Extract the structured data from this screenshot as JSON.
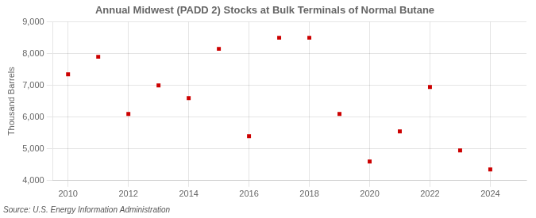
{
  "chart_data": {
    "type": "scatter",
    "title": "Annual Midwest (PADD 2) Stocks at Bulk Terminals of Normal Butane",
    "ylabel": "Thousand Barrels",
    "annotation": "Source: U.S. Energy Information Administration",
    "x": [
      2010,
      2011,
      2012,
      2013,
      2014,
      2015,
      2016,
      2017,
      2018,
      2019,
      2020,
      2021,
      2022,
      2023,
      2024
    ],
    "values": [
      7350,
      7900,
      6100,
      7000,
      6600,
      8150,
      5400,
      8500,
      8500,
      6100,
      4600,
      5550,
      6950,
      4950,
      4350
    ],
    "color": "#cc0000",
    "marker": "square",
    "xlim": [
      2009.5,
      2025.2
    ],
    "xticks": [
      2010,
      2012,
      2014,
      2016,
      2018,
      2020,
      2022,
      2024
    ],
    "ylim": [
      4000,
      9000
    ],
    "yticks": [
      {
        "value": 4000,
        "label": "4,000"
      },
      {
        "value": 5000,
        "label": "5,000"
      },
      {
        "value": 6000,
        "label": "6,000"
      },
      {
        "value": 7000,
        "label": "7,000"
      },
      {
        "value": 8000,
        "label": "8,000"
      },
      {
        "value": 9000,
        "label": "9,000"
      }
    ],
    "grid": true
  }
}
